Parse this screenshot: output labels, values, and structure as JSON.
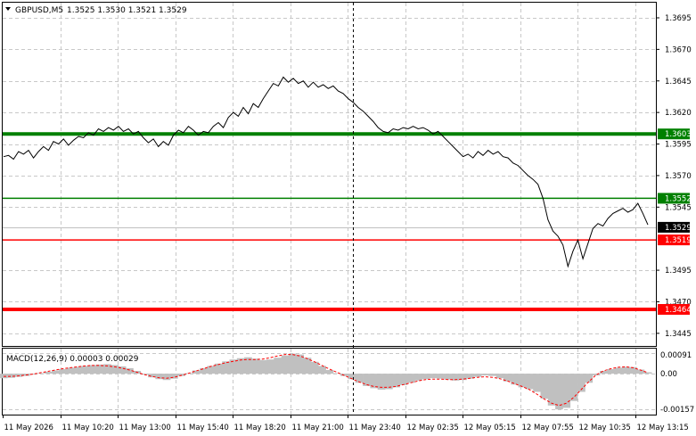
{
  "header": {
    "symbol": "GBPUSD,M5",
    "ohlc": "1.3525 1.3530 1.3521 1.3529",
    "menu_icon": "triangle-down-icon"
  },
  "colors": {
    "price_line": "#000000",
    "grid": "#c8c8c8",
    "support_resistance_green": "#008000",
    "support_resistance_red": "#ff0000",
    "current_price_bg": "#000000",
    "macd_hist": "#c0c0c0",
    "macd_signal": "#ff0000"
  },
  "price_axis": {
    "labels": [
      "1.3695",
      "1.3670",
      "1.3645",
      "1.3620",
      "1.3595",
      "1.3570",
      "1.3545",
      "1.3495",
      "1.3470",
      "1.3445"
    ],
    "values": [
      1.3695,
      1.367,
      1.3645,
      1.362,
      1.3595,
      1.357,
      1.3545,
      1.3495,
      1.347,
      1.3445
    ],
    "range": [
      1.3435,
      1.3707
    ]
  },
  "levels": [
    {
      "value": 1.3603,
      "label": "1.3603",
      "color": "#008000",
      "thick": true
    },
    {
      "value": 1.3552,
      "label": "1.3552",
      "color": "#008000",
      "thick": false
    },
    {
      "value": 1.3519,
      "label": "1.3519",
      "color": "#ff0000",
      "thick": false
    },
    {
      "value": 1.3464,
      "label": "1.3464",
      "color": "#ff0000",
      "thick": true
    }
  ],
  "current_price": {
    "value": 1.3529,
    "label": "1.3529"
  },
  "macd": {
    "title": "MACD(12,26,9) 0.00003 0.00029",
    "axis_labels": [
      "0.00091",
      "0.00",
      "-0.00157"
    ],
    "axis_values": [
      0.00091,
      0.0,
      -0.00157
    ],
    "range": [
      -0.0018,
      0.0011
    ]
  },
  "time_axis": {
    "labels": [
      "11 May 2026",
      "11 May 10:20",
      "11 May 13:00",
      "11 May 15:40",
      "11 May 18:20",
      "11 May 21:00",
      "11 May 23:40",
      "12 May 02:35",
      "12 May 05:15",
      "12 May 07:55",
      "12 May 10:35",
      "12 May 13:15"
    ]
  },
  "chart_data": {
    "type": "line",
    "title": "",
    "x_count": 140,
    "price_series": [
      1.3585,
      1.3586,
      1.3583,
      1.3589,
      1.3587,
      1.359,
      1.3584,
      1.3589,
      1.3593,
      1.359,
      1.3597,
      1.3595,
      1.3599,
      1.3594,
      1.3598,
      1.3601,
      1.36,
      1.3604,
      1.3602,
      1.3607,
      1.3605,
      1.3608,
      1.3606,
      1.3609,
      1.3605,
      1.3607,
      1.3603,
      1.3605,
      1.36,
      1.3596,
      1.3599,
      1.3593,
      1.3597,
      1.3594,
      1.3602,
      1.3606,
      1.3604,
      1.3609,
      1.3606,
      1.3602,
      1.3605,
      1.3604,
      1.3609,
      1.3612,
      1.3608,
      1.3616,
      1.362,
      1.3617,
      1.3624,
      1.3619,
      1.3627,
      1.3624,
      1.3631,
      1.3637,
      1.3643,
      1.3641,
      1.3648,
      1.3644,
      1.3647,
      1.3643,
      1.3645,
      1.364,
      1.3644,
      1.364,
      1.3642,
      1.3639,
      1.3641,
      1.3637,
      1.3635,
      1.3631,
      1.3628,
      1.3624,
      1.3621,
      1.3617,
      1.3613,
      1.3608,
      1.3605,
      1.3604,
      1.3607,
      1.3606,
      1.3608,
      1.3607,
      1.3609,
      1.3607,
      1.3608,
      1.3606,
      1.3603,
      1.3605,
      1.3601,
      1.3597,
      1.3593,
      1.3589,
      1.3585,
      1.3587,
      1.3584,
      1.3589,
      1.3586,
      1.359,
      1.3587,
      1.3589,
      1.3585,
      1.3584,
      1.358,
      1.3578,
      1.3574,
      1.357,
      1.3567,
      1.3563,
      1.3552,
      1.3535,
      1.3526,
      1.3522,
      1.3515,
      1.3498,
      1.351,
      1.3519,
      1.3504,
      1.3516,
      1.3528,
      1.3532,
      1.353,
      1.3536,
      1.354,
      1.3542,
      1.3544,
      1.3541,
      1.3543,
      1.3548,
      1.354,
      1.3531,
      1.3529,
      1.3529,
      1.3529,
      1.3529,
      1.3529,
      1.3529,
      1.3529,
      1.3529,
      1.3529,
      1.3529
    ],
    "price_points_used": 130,
    "macd_histogram": [
      -0.0002,
      -0.00018,
      -0.00014,
      -0.0001,
      -4e-05,
      2e-05,
      8e-05,
      0.00014,
      0.0002,
      0.00026,
      0.0003,
      0.00034,
      0.00038,
      0.0004,
      0.00042,
      0.00038,
      0.00032,
      0.00024,
      0.00012,
      -4e-05,
      -0.00016,
      -0.00024,
      -0.00028,
      -0.00022,
      -0.0001,
      2e-05,
      0.00014,
      0.00024,
      0.00034,
      0.00044,
      0.00054,
      0.00062,
      0.00068,
      0.00072,
      0.00066,
      0.0006,
      0.00062,
      0.0007,
      0.0008,
      0.00088,
      0.00084,
      0.0007,
      0.00052,
      0.00034,
      0.00016,
      2e-05,
      -0.0001,
      -0.00024,
      -0.0004,
      -0.00054,
      -0.00064,
      -0.0007,
      -0.00068,
      -0.0006,
      -0.0005,
      -0.0004,
      -0.0003,
      -0.00024,
      -0.0002,
      -0.00022,
      -0.00026,
      -0.0003,
      -0.00028,
      -0.00022,
      -0.00014,
      -8e-05,
      -0.0001,
      -0.0002,
      -0.00034,
      -0.00048,
      -0.0006,
      -0.00068,
      -0.0008,
      -0.0011,
      -0.0014,
      -0.00157,
      -0.0015,
      -0.0012,
      -0.0008,
      -0.0004,
      -8e-05,
      0.00012,
      0.0002,
      0.00026,
      0.0003,
      0.00029,
      0.00018,
      6e-05
    ],
    "macd_signal": [
      -0.00012,
      -0.00012,
      -0.0001,
      -6e-05,
      -2e-05,
      4e-05,
      0.0001,
      0.00016,
      0.00022,
      0.00026,
      0.0003,
      0.00034,
      0.00036,
      0.00036,
      0.00034,
      0.0003,
      0.00024,
      0.00016,
      6e-05,
      -4e-05,
      -0.00012,
      -0.00018,
      -0.0002,
      -0.00016,
      -8e-05,
      2e-05,
      0.00012,
      0.00022,
      0.00032,
      0.0004,
      0.00048,
      0.00054,
      0.0006,
      0.00062,
      0.00062,
      0.00064,
      0.0007,
      0.00078,
      0.00084,
      0.00084,
      0.00078,
      0.00066,
      0.00052,
      0.00036,
      0.0002,
      6e-05,
      -8e-05,
      -0.00022,
      -0.00036,
      -0.00048,
      -0.00056,
      -0.0006,
      -0.0006,
      -0.00056,
      -0.00048,
      -0.0004,
      -0.00032,
      -0.00026,
      -0.00024,
      -0.00024,
      -0.00026,
      -0.00026,
      -0.00024,
      -0.0002,
      -0.00016,
      -0.00014,
      -0.00016,
      -0.00022,
      -0.00032,
      -0.00044,
      -0.00056,
      -0.0007,
      -0.0009,
      -0.00112,
      -0.0013,
      -0.0014,
      -0.0013,
      -0.00104,
      -0.0007,
      -0.00036,
      -6e-05,
      0.00012,
      0.00022,
      0.00028,
      0.0003,
      0.00026,
      0.00016,
      4e-05
    ]
  }
}
